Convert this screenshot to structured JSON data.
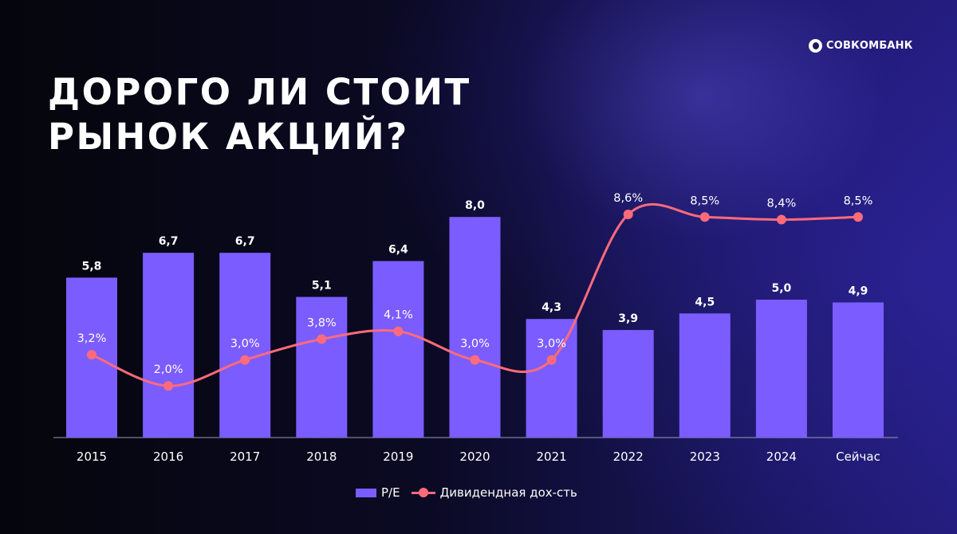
{
  "brand": {
    "name": "СОВКОМБАНК",
    "icon": "sovcombank-logo-icon"
  },
  "title": {
    "line1": "ДОРОГО ЛИ СТОИТ",
    "line2": "РЫНОК АКЦИЙ?"
  },
  "colors": {
    "bar": "#7b5cff",
    "line": "#ff6b7a",
    "text": "#ffffff",
    "axis": "#9a9ab8"
  },
  "chart_data": {
    "type": "bar",
    "categories": [
      "2015",
      "2016",
      "2017",
      "2018",
      "2019",
      "2020",
      "2021",
      "2022",
      "2023",
      "2024",
      "Сейчас"
    ],
    "series": [
      {
        "name": "P/E",
        "type": "bar",
        "values": [
          5.8,
          6.7,
          6.7,
          5.1,
          6.4,
          8.0,
          4.3,
          3.9,
          4.5,
          5.0,
          4.9
        ],
        "labels": [
          "5,8",
          "6,7",
          "6,7",
          "5,1",
          "6,4",
          "8,0",
          "4,3",
          "3,9",
          "4,5",
          "5,0",
          "4,9"
        ]
      },
      {
        "name": "Дивидендная дох-сть",
        "type": "line",
        "values": [
          3.2,
          2.0,
          3.0,
          3.8,
          4.1,
          3.0,
          3.0,
          8.6,
          8.5,
          8.4,
          8.5
        ],
        "labels": [
          "3,2%",
          "2,0%",
          "3,0%",
          "3,8%",
          "4,1%",
          "3,0%",
          "3,0%",
          "8,6%",
          "8,5%",
          "8,4%",
          "8,5%"
        ]
      }
    ],
    "legend_position": "bottom",
    "grid": false
  }
}
